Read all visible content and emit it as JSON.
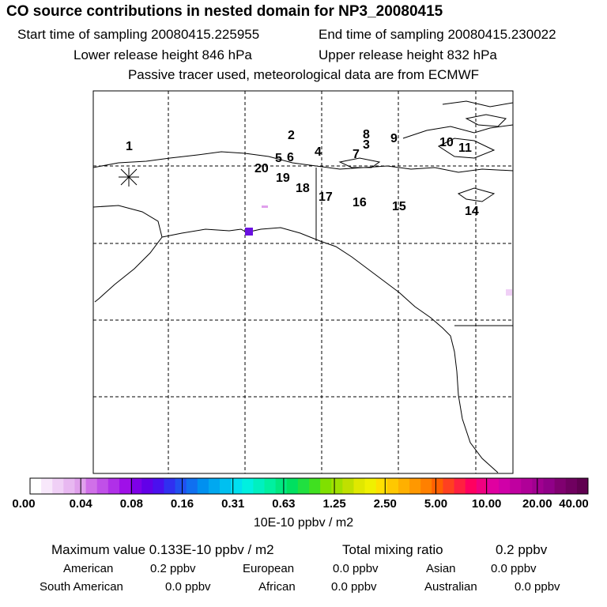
{
  "title": "CO  source contributions in nested domain for NP3_20080415",
  "start_time": "Start time of sampling 20080415.225955",
  "end_time": "End time of sampling 20080415.230022",
  "lower_height": "Lower release height  846 hPa",
  "upper_height": "Upper release height  832 hPa",
  "tracer_note": "Passive tracer used, meteorological data are from ECMWF",
  "map_labels": [
    "1",
    "2",
    "3",
    "4",
    "5",
    "6",
    "7",
    "8",
    "9",
    "10",
    "11",
    "14",
    "15",
    "16",
    "17",
    "18",
    "19",
    "20"
  ],
  "colorbar": {
    "ticks": [
      "0.00",
      "0.04",
      "0.08",
      "0.16",
      "0.31",
      "0.63",
      "1.25",
      "2.50",
      "5.00",
      "10.00",
      "20.00",
      "40.00"
    ],
    "colors": [
      "#ffffff",
      "#f8e8fb",
      "#f0d0f6",
      "#e8b8f1",
      "#e0a0ec",
      "#d070e8",
      "#c050e8",
      "#b030e8",
      "#9f10e8",
      "#7e00e8",
      "#6200e8",
      "#4a10ee",
      "#3030f0",
      "#2050f0",
      "#1070f0",
      "#0090f0",
      "#00a8f0",
      "#00c0f0",
      "#00e0f0",
      "#00f0e0",
      "#00f0c0",
      "#00f0a0",
      "#00e880",
      "#00e060",
      "#20e040",
      "#40e020",
      "#80e000",
      "#a0e000",
      "#c0e000",
      "#e0e800",
      "#f0f000",
      "#ffe000",
      "#ffc800",
      "#ffb000",
      "#ff9800",
      "#ff8000",
      "#ff6000",
      "#ff4020",
      "#ff2040",
      "#ff0060",
      "#f00080",
      "#e000a0",
      "#d000a8",
      "#c000a0",
      "#b00098",
      "#a00090",
      "#900088",
      "#800070",
      "#700060",
      "#600050"
    ],
    "units": "10E-10 ppbv / m2"
  },
  "summary": {
    "max_label": "Maximum value  0.133E-10 ppbv / m2",
    "total_label": "Total mixing ratio",
    "total_value": "0.2 ppbv"
  },
  "regions": [
    {
      "name": "American",
      "value": "0.2 ppbv"
    },
    {
      "name": "European",
      "value": "0.0 ppbv"
    },
    {
      "name": "Asian",
      "value": "0.0 ppbv"
    },
    {
      "name": "South American",
      "value": "0.0 ppbv"
    },
    {
      "name": "African",
      "value": "0.0 ppbv"
    },
    {
      "name": "Australian",
      "value": "0.0 ppbv"
    }
  ]
}
